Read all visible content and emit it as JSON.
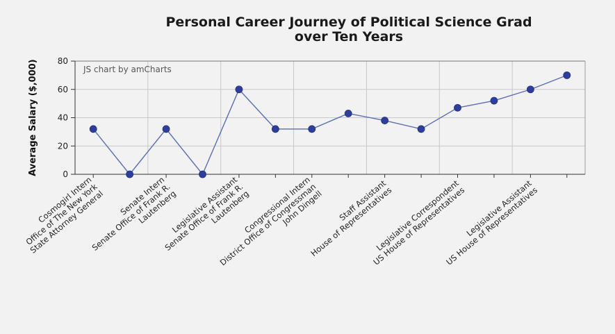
{
  "chart_data": {
    "type": "line",
    "title": [
      "Personal Career Journey of Political Science Grad",
      "over Ten Years"
    ],
    "ylabel": "Average Salary ($,000)",
    "xlabel": "",
    "ylim": [
      0,
      80
    ],
    "yticks": [
      0,
      20,
      40,
      60,
      80
    ],
    "grid": true,
    "credit": "JS chart by amCharts",
    "colors": {
      "line": "#5a6fb5",
      "point": "#2d3f9a",
      "axis": "#333333",
      "grid": "#c8c8c8",
      "background": "#f2f2f2"
    },
    "x_labels": [
      [
        "Cosmogirl Intern",
        "Office of The New York",
        "State Attorney General"
      ],
      [
        "Senate Intern",
        "Senate Office of Frank R.",
        "Lautenberg"
      ],
      [
        "Legislative Assistant",
        "Senate Office of Frank R.",
        "Lautenberg"
      ],
      [
        "Congressional Intern",
        "District Office of Congressman",
        "John Dingell"
      ],
      [
        "Staff Assistant",
        "House of Representatives"
      ],
      [
        "Legislative Correspondent",
        "US House of Representatives"
      ],
      [
        "Legislative Assistant",
        "US House of Representatives"
      ]
    ],
    "values": [
      32,
      0,
      32,
      0,
      60,
      32,
      32,
      43,
      38,
      32,
      47,
      52,
      60,
      70
    ]
  }
}
